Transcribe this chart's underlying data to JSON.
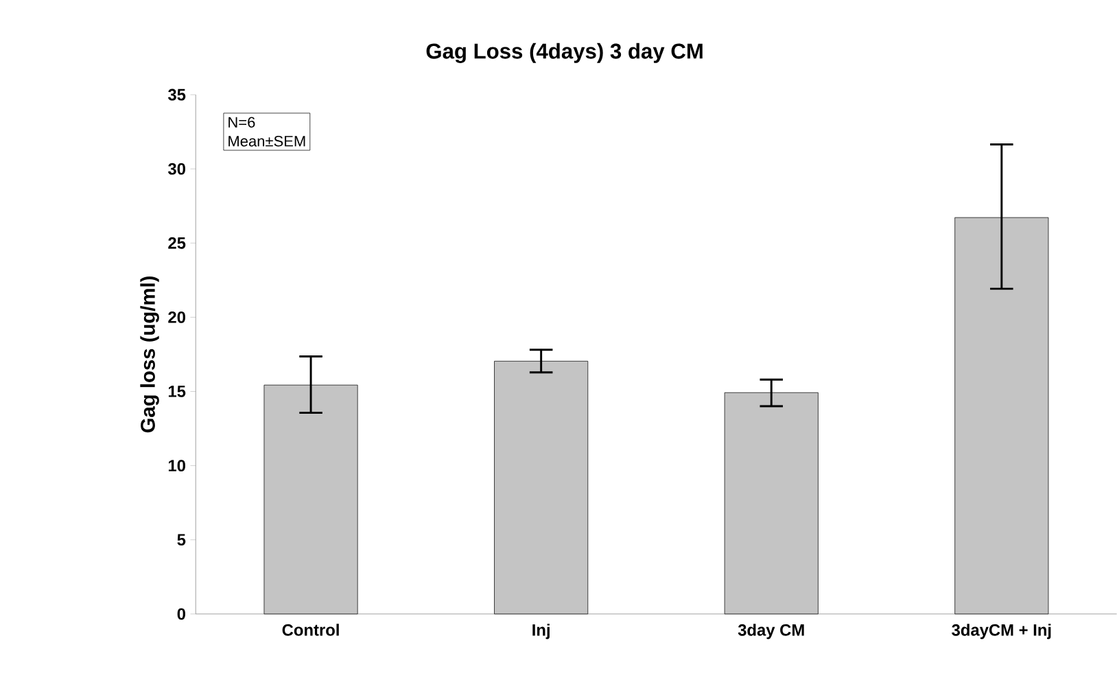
{
  "chart_data": {
    "type": "bar",
    "title": "Gag Loss (4days) 3 day CM",
    "ylabel": "Gag loss (ug/ml)",
    "categories": [
      "Control",
      "Inj",
      "3day CM",
      "3dayCM + Inj"
    ],
    "values": [
      15.43,
      17.04,
      14.92,
      26.72
    ],
    "errors": [
      [
        13.56,
        17.36
      ],
      [
        16.28,
        17.81
      ],
      [
        14.01,
        15.8
      ],
      [
        21.92,
        31.65
      ]
    ],
    "color": "#c4c4c4",
    "ylim": [
      0,
      35
    ],
    "yticks": [
      0,
      5,
      10,
      15,
      20,
      25,
      30,
      35
    ],
    "annotations": [
      "N=6",
      "Mean±SEM"
    ]
  }
}
